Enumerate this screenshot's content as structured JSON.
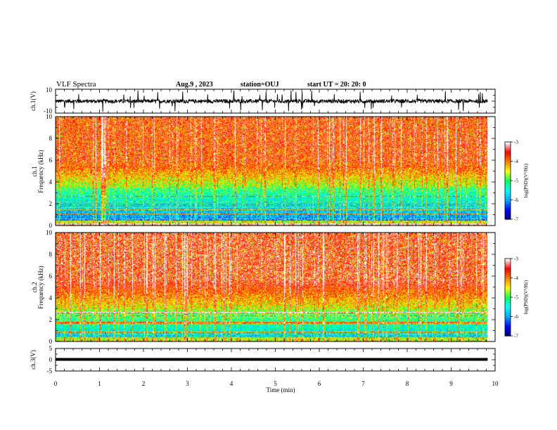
{
  "header": {
    "title": "VLF Spectra",
    "date": "Aug.9  , 2023",
    "station": "station=OUJ",
    "start": "start  UT  =   20: 20: 0"
  },
  "chart_data": [
    {
      "type": "line",
      "name": "ch1-waveform",
      "ylabel": "ch.1(V)",
      "ylim": [
        -10,
        10
      ],
      "yticks": [
        "10",
        "-10"
      ],
      "baseline": 0
    },
    {
      "type": "heatmap",
      "name": "ch1-spectrogram",
      "ylabel_line1": "ch.1",
      "ylabel_line2": "Frequency (kHz)",
      "ylim": [
        0,
        10
      ],
      "yticks": [
        "0",
        "2",
        "4",
        "6",
        "8",
        "10"
      ],
      "xlim": [
        0,
        9.83
      ],
      "colorbar": {
        "label": "log(PSD)(V²/Hz)",
        "range": [
          -7,
          -3
        ],
        "ticks": [
          "-3",
          "-4",
          "-5",
          "-6",
          "-7"
        ]
      }
    },
    {
      "type": "heatmap",
      "name": "ch2-spectrogram",
      "ylabel_line1": "ch.2",
      "ylabel_line2": "Frequency (kHz)",
      "ylim": [
        0,
        10
      ],
      "yticks": [
        "0",
        "2",
        "4",
        "6",
        "8",
        "10"
      ],
      "xlim": [
        0,
        9.83
      ],
      "colorbar": {
        "label": "log(PSD)(V²/Hz)",
        "range": [
          -7,
          -3
        ],
        "ticks": [
          "-3",
          "-4",
          "-5",
          "-6",
          "-7"
        ]
      }
    },
    {
      "type": "line",
      "name": "ch3-waveform",
      "ylabel": "ch.3(V)",
      "ylim": [
        -5,
        5
      ],
      "yticks": [
        "5",
        "0",
        "-5"
      ],
      "baseline": 0
    }
  ],
  "xaxis": {
    "label": "Time (min)",
    "range": [
      0,
      10
    ],
    "ticks": [
      "0",
      "1",
      "2",
      "3",
      "4",
      "5",
      "6",
      "7",
      "8",
      "9",
      "10"
    ]
  },
  "colors": {
    "colormap": [
      "#000080",
      "#0000ff",
      "#00a0ff",
      "#00ffff",
      "#00ff60",
      "#ffff00",
      "#ff8000",
      "#ff0000",
      "#ffffff"
    ]
  }
}
